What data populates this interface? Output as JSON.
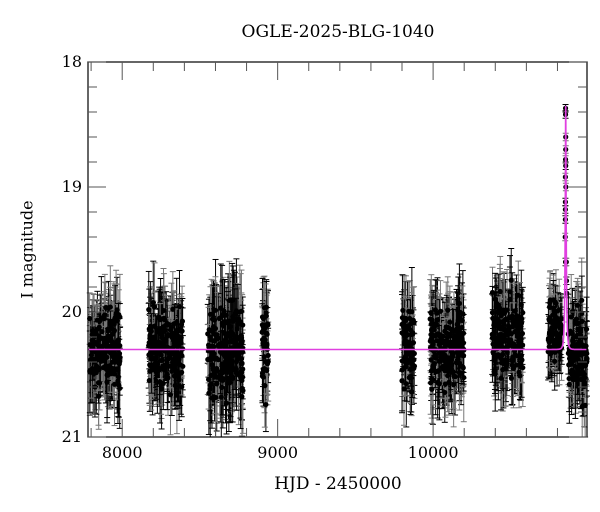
{
  "chart_data": {
    "type": "scatter",
    "title": "OGLE-2025-BLG-1040",
    "xlabel": "HJD - 2450000",
    "ylabel": "I magnitude",
    "xlim": [
      7780,
      10990
    ],
    "ylim": [
      21,
      18
    ],
    "y_inverted": true,
    "x_ticks": [
      8000,
      9000,
      10000
    ],
    "x_minor_step": 200,
    "y_ticks": [
      18,
      19,
      20,
      21
    ],
    "y_minor_step": 0.2,
    "grid": false,
    "series": [
      {
        "name": "OGLE I-band photometry",
        "kind": "points_with_errorbars",
        "color": "#000000",
        "seasons": [
          {
            "x_range": [
              7790,
              7990
            ],
            "y_center": 20.3,
            "y_spread": 0.3,
            "err": 0.3
          },
          {
            "x_range": [
              8170,
              8390
            ],
            "y_center": 20.3,
            "y_spread": 0.3,
            "err": 0.3
          },
          {
            "x_range": [
              8550,
              8780
            ],
            "y_center": 20.3,
            "y_spread": 0.35,
            "err": 0.35
          },
          {
            "x_range": [
              8900,
              8940
            ],
            "y_center": 20.3,
            "y_spread": 0.3,
            "err": 0.3
          },
          {
            "x_range": [
              9800,
              9880
            ],
            "y_center": 20.3,
            "y_spread": 0.3,
            "err": 0.3
          },
          {
            "x_range": [
              9980,
              10200
            ],
            "y_center": 20.3,
            "y_spread": 0.3,
            "err": 0.3
          },
          {
            "x_range": [
              10380,
              10580
            ],
            "y_center": 20.2,
            "y_spread": 0.3,
            "err": 0.3
          },
          {
            "x_range": [
              10740,
              10830
            ],
            "y_center": 20.15,
            "y_spread": 0.25,
            "err": 0.25
          },
          {
            "x_range": [
              10870,
              10990
            ],
            "y_center": 20.3,
            "y_spread": 0.3,
            "err": 0.3
          }
        ],
        "peak_points": [
          {
            "x": 10852,
            "y": 18.37
          },
          {
            "x": 10852,
            "y": 18.42
          },
          {
            "x": 10853,
            "y": 18.6
          },
          {
            "x": 10853,
            "y": 18.7
          },
          {
            "x": 10852,
            "y": 18.78
          },
          {
            "x": 10853,
            "y": 18.83
          },
          {
            "x": 10851,
            "y": 18.92
          },
          {
            "x": 10854,
            "y": 19.0
          },
          {
            "x": 10851,
            "y": 19.12
          },
          {
            "x": 10851,
            "y": 19.18
          },
          {
            "x": 10851,
            "y": 19.26
          },
          {
            "x": 10850,
            "y": 19.4
          },
          {
            "x": 10852,
            "y": 19.6
          },
          {
            "x": 10857,
            "y": 19.6
          },
          {
            "x": 10858,
            "y": 19.75
          },
          {
            "x": 10860,
            "y": 19.85
          }
        ]
      },
      {
        "name": "Microlensing model fit",
        "kind": "line",
        "color": "#e040e0",
        "baseline_mag": 20.3,
        "t0": 10853,
        "peak_mag": 18.35,
        "tE_approx": 8
      }
    ],
    "legend": null
  }
}
